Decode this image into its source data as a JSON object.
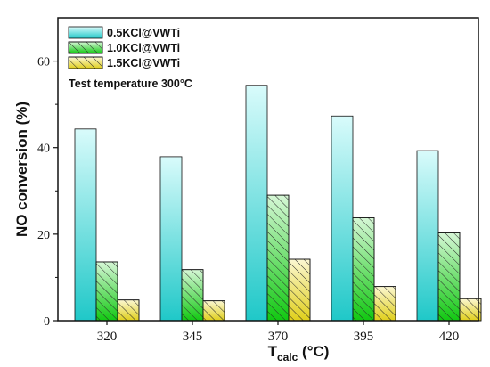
{
  "chart_data": {
    "type": "bar",
    "categories": [
      "320",
      "345",
      "370",
      "395",
      "420"
    ],
    "series": [
      {
        "name": "0.5KCl@VWTi",
        "values": [
          44.3,
          37.9,
          54.4,
          47.3,
          39.3
        ]
      },
      {
        "name": "1.0KCl@VWTi",
        "values": [
          13.6,
          11.8,
          29.0,
          23.8,
          20.3
        ]
      },
      {
        "name": "1.5KCl@VWTi",
        "values": [
          4.8,
          4.6,
          14.2,
          7.9,
          5.1
        ]
      }
    ],
    "yticks": [
      "0",
      "20",
      "40",
      "60"
    ],
    "ylim": [
      0,
      70
    ],
    "ylabel": "NO conversion (%)",
    "xlabel_main": "T",
    "xlabel_sub": "calc",
    "xlabel_unit": " (°C)",
    "annotation": "Test temperature 300°C",
    "legend_position": "top-left",
    "colors": {
      "series1_top": "#d9fbfb",
      "series1_bottom": "#1fc8c8",
      "series2_top": "#d6f7d6",
      "series2_bottom": "#11c811",
      "series3_top": "#fbf7d2",
      "series3_bottom": "#e0cf1a",
      "hatch": "#2a2a2a"
    }
  }
}
